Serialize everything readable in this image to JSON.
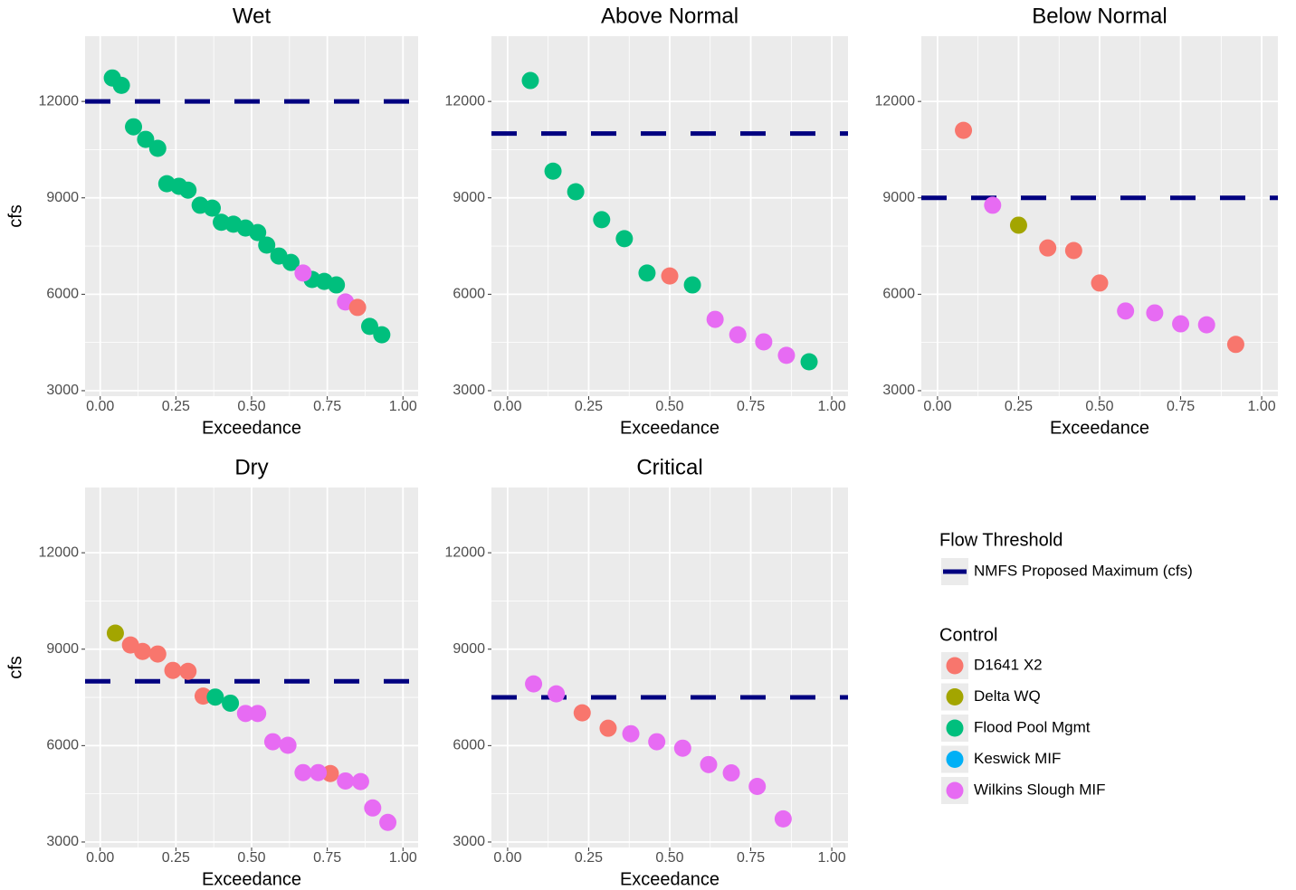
{
  "chart_data": [
    {
      "type": "scatter",
      "title": "Wet",
      "x_label": "Exceedance",
      "y_label": "cfs",
      "xlim": [
        -0.05,
        1.05
      ],
      "ylim": [
        2830,
        14030
      ],
      "xticks": [
        {
          "value": 0,
          "label": "0.00"
        },
        {
          "value": 0.25,
          "label": "0.25"
        },
        {
          "value": 0.5,
          "label": "0.50"
        },
        {
          "value": 0.75,
          "label": "0.75"
        },
        {
          "value": 1,
          "label": "1.00"
        }
      ],
      "yticks": [
        3000,
        6000,
        9000,
        12000
      ],
      "grid": true,
      "threshold": 12000,
      "series": [
        {
          "name": "Flood Pool Mgmt",
          "color": "#00BF7D",
          "x": [
            0.04,
            0.07,
            0.11,
            0.15,
            0.19,
            0.22,
            0.26,
            0.29,
            0.33,
            0.37,
            0.4,
            0.44,
            0.48,
            0.52,
            0.55,
            0.59,
            0.63,
            0.7,
            0.74,
            0.78,
            0.89,
            0.93
          ],
          "values": [
            12730,
            12500,
            11210,
            10820,
            10540,
            9440,
            9360,
            9240,
            8770,
            8680,
            8240,
            8180,
            8060,
            7920,
            7530,
            7190,
            6990,
            6460,
            6400,
            6290,
            5000,
            4740
          ]
        },
        {
          "name": "Wilkins Slough MIF",
          "color": "#E76BF3",
          "x": [
            0.67,
            0.81
          ],
          "values": [
            6660,
            5760
          ]
        },
        {
          "name": "D1641 X2",
          "color": "#F8766D",
          "x": [
            0.85
          ],
          "values": [
            5590
          ]
        }
      ]
    },
    {
      "type": "scatter",
      "title": "Above Normal",
      "x_label": "Exceedance",
      "xlim": [
        -0.05,
        1.05
      ],
      "ylim": [
        2830,
        14030
      ],
      "xticks": [
        {
          "value": 0,
          "label": "0.00"
        },
        {
          "value": 0.25,
          "label": "0.25"
        },
        {
          "value": 0.5,
          "label": "0.50"
        },
        {
          "value": 0.75,
          "label": "0.75"
        },
        {
          "value": 1,
          "label": "1.00"
        }
      ],
      "yticks": [
        3000,
        6000,
        9000,
        12000
      ],
      "grid": true,
      "threshold": 11000,
      "series": [
        {
          "name": "D1641 X2",
          "color": "#F8766D",
          "x": [
            0.5
          ],
          "values": [
            6570
          ]
        },
        {
          "name": "Flood Pool Mgmt",
          "color": "#00BF7D",
          "x": [
            0.07,
            0.14,
            0.21,
            0.29,
            0.36,
            0.43,
            0.57,
            0.93
          ],
          "values": [
            12650,
            9830,
            9190,
            8320,
            7730,
            6660,
            6290,
            3900
          ]
        },
        {
          "name": "Wilkins Slough MIF",
          "color": "#E76BF3",
          "x": [
            0.64,
            0.71,
            0.79,
            0.86
          ],
          "values": [
            5220,
            4740,
            4520,
            4100
          ]
        }
      ]
    },
    {
      "type": "scatter",
      "title": "Below Normal",
      "x_label": "Exceedance",
      "xlim": [
        -0.05,
        1.05
      ],
      "ylim": [
        2830,
        14030
      ],
      "xticks": [
        {
          "value": 0,
          "label": "0.00"
        },
        {
          "value": 0.25,
          "label": "0.25"
        },
        {
          "value": 0.5,
          "label": "0.50"
        },
        {
          "value": 0.75,
          "label": "0.75"
        },
        {
          "value": 1,
          "label": "1.00"
        }
      ],
      "yticks": [
        3000,
        6000,
        9000,
        12000
      ],
      "grid": true,
      "threshold": 9000,
      "series": [
        {
          "name": "D1641 X2",
          "color": "#F8766D",
          "x": [
            0.08,
            0.34,
            0.42,
            0.5,
            0.92
          ],
          "values": [
            11100,
            7440,
            7360,
            6350,
            4440
          ]
        },
        {
          "name": "Delta WQ",
          "color": "#A3A500",
          "x": [
            0.25
          ],
          "values": [
            8150
          ]
        },
        {
          "name": "Wilkins Slough MIF",
          "color": "#E76BF3",
          "x": [
            0.17,
            0.58,
            0.67,
            0.75,
            0.83
          ],
          "values": [
            8770,
            5480,
            5420,
            5080,
            5050
          ]
        }
      ]
    },
    {
      "type": "scatter",
      "title": "Dry",
      "x_label": "Exceedance",
      "y_label": "cfs",
      "xlim": [
        -0.05,
        1.05
      ],
      "ylim": [
        2830,
        14030
      ],
      "xticks": [
        {
          "value": 0,
          "label": "0.00"
        },
        {
          "value": 0.25,
          "label": "0.25"
        },
        {
          "value": 0.5,
          "label": "0.50"
        },
        {
          "value": 0.75,
          "label": "0.75"
        },
        {
          "value": 1,
          "label": "1.00"
        }
      ],
      "yticks": [
        3000,
        6000,
        9000,
        12000
      ],
      "grid": true,
      "threshold": 8000,
      "series": [
        {
          "name": "D1641 X2",
          "color": "#F8766D",
          "x": [
            0.1,
            0.14,
            0.19,
            0.24,
            0.29,
            0.34,
            0.76
          ],
          "values": [
            9130,
            8930,
            8850,
            8340,
            8310,
            7540,
            5130
          ]
        },
        {
          "name": "Delta WQ",
          "color": "#A3A500",
          "x": [
            0.05
          ],
          "values": [
            9500
          ]
        },
        {
          "name": "Flood Pool Mgmt",
          "color": "#00BF7D",
          "x": [
            0.38,
            0.43
          ],
          "values": [
            7510,
            7320
          ]
        },
        {
          "name": "Wilkins Slough MIF",
          "color": "#E76BF3",
          "x": [
            0.48,
            0.52,
            0.57,
            0.62,
            0.67,
            0.72,
            0.81,
            0.86,
            0.9,
            0.95
          ],
          "values": [
            7000,
            7000,
            6120,
            6010,
            5160,
            5160,
            4900,
            4880,
            4060,
            3610
          ]
        }
      ]
    },
    {
      "type": "scatter",
      "title": "Critical",
      "x_label": "Exceedance",
      "xlim": [
        -0.05,
        1.05
      ],
      "ylim": [
        2830,
        14030
      ],
      "xticks": [
        {
          "value": 0,
          "label": "0.00"
        },
        {
          "value": 0.25,
          "label": "0.25"
        },
        {
          "value": 0.5,
          "label": "0.50"
        },
        {
          "value": 0.75,
          "label": "0.75"
        },
        {
          "value": 1,
          "label": "1.00"
        }
      ],
      "yticks": [
        3000,
        6000,
        9000,
        12000
      ],
      "grid": true,
      "threshold": 7500,
      "series": [
        {
          "name": "D1641 X2",
          "color": "#F8766D",
          "x": [
            0.23,
            0.31
          ],
          "values": [
            7020,
            6540
          ]
        },
        {
          "name": "Wilkins Slough MIF",
          "color": "#E76BF3",
          "x": [
            0.08,
            0.15,
            0.38,
            0.46,
            0.54,
            0.62,
            0.69,
            0.77,
            0.85
          ],
          "values": [
            7920,
            7610,
            6370,
            6120,
            5920,
            5410,
            5150,
            4730,
            3720
          ]
        }
      ]
    }
  ],
  "legend": {
    "threshold_title": "Flow Threshold",
    "threshold_label": "NMFS Proposed Maximum (cfs)",
    "threshold_color": "#000080",
    "control_title": "Control",
    "controls": [
      {
        "name": "D1641 X2",
        "color": "#F8766D"
      },
      {
        "name": "Delta WQ",
        "color": "#A3A500"
      },
      {
        "name": "Flood Pool Mgmt",
        "color": "#00BF7D"
      },
      {
        "name": "Keswick MIF",
        "color": "#00B0F6"
      },
      {
        "name": "Wilkins Slough MIF",
        "color": "#E76BF3"
      }
    ]
  }
}
